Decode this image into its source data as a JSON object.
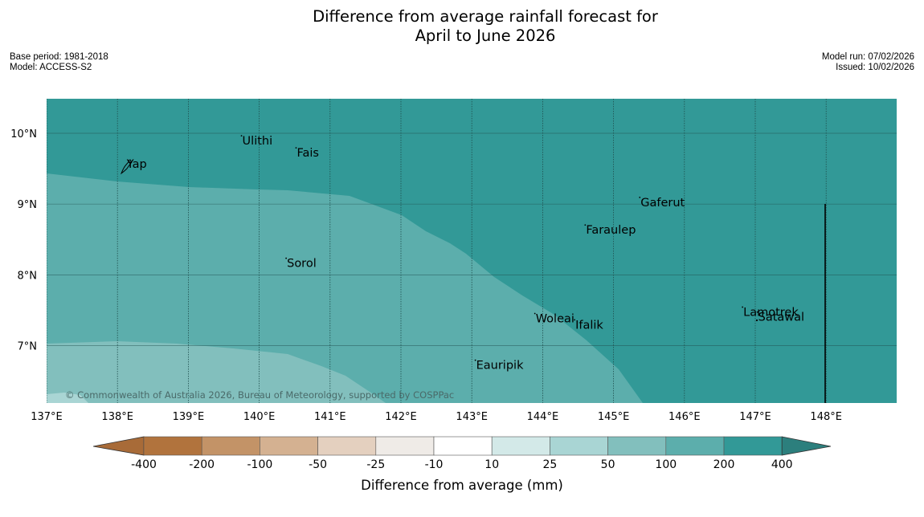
{
  "title": {
    "line1": "Difference from average rainfall forecast for",
    "line2": "April to June 2026"
  },
  "meta_left": {
    "base_period": "Base period: 1981-2018",
    "model": "Model: ACCESS-S2"
  },
  "meta_right": {
    "model_run": "Model run: 07/02/2026",
    "issued": "Issued: 10/02/2026"
  },
  "map": {
    "lon_range": [
      137,
      149
    ],
    "lat_range": [
      6.2,
      10.5
    ],
    "lon_ticks": [
      {
        "value": 137,
        "label": "137°E"
      },
      {
        "value": 138,
        "label": "138°E"
      },
      {
        "value": 139,
        "label": "139°E"
      },
      {
        "value": 140,
        "label": "140°E"
      },
      {
        "value": 141,
        "label": "141°E"
      },
      {
        "value": 142,
        "label": "142°E"
      },
      {
        "value": 143,
        "label": "143°E"
      },
      {
        "value": 144,
        "label": "144°E"
      },
      {
        "value": 145,
        "label": "145°E"
      },
      {
        "value": 146,
        "label": "146°E"
      },
      {
        "value": 147,
        "label": "147°E"
      },
      {
        "value": 148,
        "label": "148°E"
      }
    ],
    "lat_ticks": [
      {
        "value": 10,
        "label": "10°N"
      },
      {
        "value": 9,
        "label": "9°N"
      },
      {
        "value": 8,
        "label": "8°N"
      },
      {
        "value": 7,
        "label": "7°N"
      }
    ],
    "places": [
      {
        "name": "Ulithi",
        "lon": 139.75,
        "lat": 9.84
      },
      {
        "name": "Fais",
        "lon": 140.52,
        "lat": 9.67
      },
      {
        "name": "Yap",
        "lon": 138.12,
        "lat": 9.51
      },
      {
        "name": "Gaferut",
        "lon": 145.37,
        "lat": 8.97
      },
      {
        "name": "Faraulep",
        "lon": 144.6,
        "lat": 8.58
      },
      {
        "name": "Sorol",
        "lon": 140.38,
        "lat": 8.11
      },
      {
        "name": "Lamotrek",
        "lon": 146.82,
        "lat": 7.42
      },
      {
        "name": "Woleai",
        "lon": 143.89,
        "lat": 7.33
      },
      {
        "name": "Ifalik",
        "lon": 144.45,
        "lat": 7.24
      },
      {
        "name": "Satawal",
        "lon": 147.03,
        "lat": 7.35
      },
      {
        "name": "Eauripik",
        "lon": 143.05,
        "lat": 6.67
      }
    ],
    "fill_levels": [
      "50 to 100",
      "100 to 200",
      "200 to 400"
    ],
    "copyright": "© Commonwealth of Australia 2026, Bureau of Meteorology, supported by COSPPac"
  },
  "legend": {
    "title": "Difference from average (mm)",
    "labels": [
      "-400",
      "-200",
      "-100",
      "-50",
      "-25",
      "-10",
      "10",
      "25",
      "50",
      "100",
      "200",
      "400"
    ],
    "colors": [
      "#a86b38",
      "#b1733d",
      "#c39367",
      "#d4b191",
      "#e4d0bf",
      "#efebe7",
      "#ffffff",
      "#d3e9e8",
      "#a9d5d4",
      "#82bfbd",
      "#5caeac",
      "#329997",
      "#2c7f7d"
    ]
  }
}
